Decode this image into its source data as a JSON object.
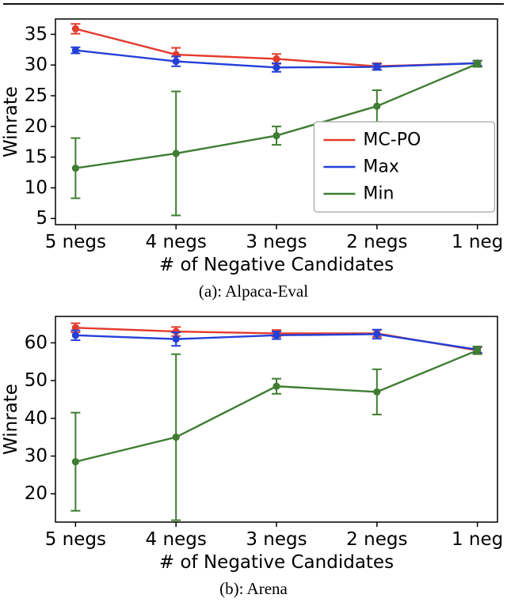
{
  "figure": {
    "background": "#ffffff",
    "rule_color": "#111111"
  },
  "chart_data": [
    {
      "type": "line",
      "caption": "(a): Alpaca-Eval",
      "categories": [
        "5 negs",
        "4 negs",
        "3 negs",
        "2 negs",
        "1 neg"
      ],
      "xlabel": "# of Negative Candidates",
      "ylabel": "Winrate",
      "ylim": [
        4,
        37.5
      ],
      "yticks": [
        5,
        10,
        15,
        20,
        25,
        30,
        35
      ],
      "grid": false,
      "legend": {
        "show": true,
        "position": "right-middle",
        "entries": [
          "MC-PO",
          "Max",
          "Min"
        ]
      },
      "series": [
        {
          "name": "MC-PO",
          "color": "#e33b2e",
          "values": [
            35.9,
            31.7,
            31.0,
            29.8,
            30.3
          ],
          "err": [
            0.8,
            1.1,
            0.8,
            0.5,
            0.4
          ]
        },
        {
          "name": "Max",
          "color": "#2440d8",
          "values": [
            32.4,
            30.6,
            29.6,
            29.7,
            30.3
          ],
          "err": [
            0.5,
            0.8,
            0.7,
            0.5,
            0.4
          ]
        },
        {
          "name": "Min",
          "color": "#3f7d32",
          "values": [
            13.2,
            15.6,
            18.5,
            23.3,
            30.2
          ],
          "err": [
            4.9,
            10.1,
            1.5,
            2.6,
            0.5
          ]
        }
      ]
    },
    {
      "type": "line",
      "caption": "(b): Arena",
      "categories": [
        "5 negs",
        "4 negs",
        "3 negs",
        "2 negs",
        "1 neg"
      ],
      "xlabel": "# of Negative Candidates",
      "ylabel": "Winrate",
      "ylim": [
        12.5,
        67
      ],
      "yticks": [
        20,
        30,
        40,
        50,
        60
      ],
      "grid": false,
      "legend": {
        "show": false,
        "position": "none",
        "entries": []
      },
      "series": [
        {
          "name": "MC-PO",
          "color": "#e33b2e",
          "values": [
            64.0,
            63.0,
            62.5,
            62.5,
            58.0
          ],
          "err": [
            1.2,
            1.2,
            0.9,
            0.9,
            0.8
          ]
        },
        {
          "name": "Max",
          "color": "#2440d8",
          "values": [
            62.0,
            61.0,
            62.0,
            62.3,
            58.2
          ],
          "err": [
            1.3,
            1.8,
            1.0,
            1.2,
            0.8
          ]
        },
        {
          "name": "Min",
          "color": "#3f7d32",
          "values": [
            28.5,
            35.0,
            48.5,
            47.0,
            58.0
          ],
          "err": [
            13.0,
            22.0,
            2.0,
            6.0,
            1.0
          ]
        }
      ]
    }
  ]
}
